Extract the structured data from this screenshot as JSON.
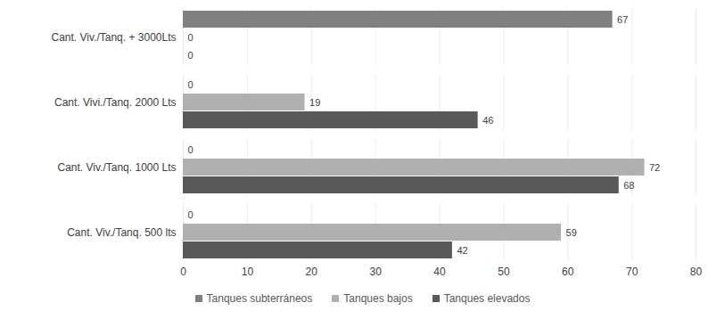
{
  "chart_data": {
    "type": "bar",
    "orientation": "horizontal",
    "categories": [
      "Cant. Viv./Tanq. + 3000Lts",
      "Cant. Vivi./Tanq. 2000 Lts",
      "Cant. Viv./Tanq. 1000 Lts",
      "Cant. Viv./Tanq. 500 lts"
    ],
    "series": [
      {
        "name": "Tanques subterráneos",
        "color": "#808080",
        "values": [
          67,
          0,
          0,
          0
        ]
      },
      {
        "name": "Tanques bajos",
        "color": "#b0b0b0",
        "values": [
          0,
          19,
          72,
          59
        ]
      },
      {
        "name": "Tanques elevados",
        "color": "#595959",
        "values": [
          0,
          46,
          68,
          42
        ]
      }
    ],
    "xlim": [
      0,
      80
    ],
    "xticks": [
      0,
      10,
      20,
      30,
      40,
      50,
      60,
      70,
      80
    ],
    "grid": true,
    "data_labels": true,
    "legend": "bottom"
  }
}
